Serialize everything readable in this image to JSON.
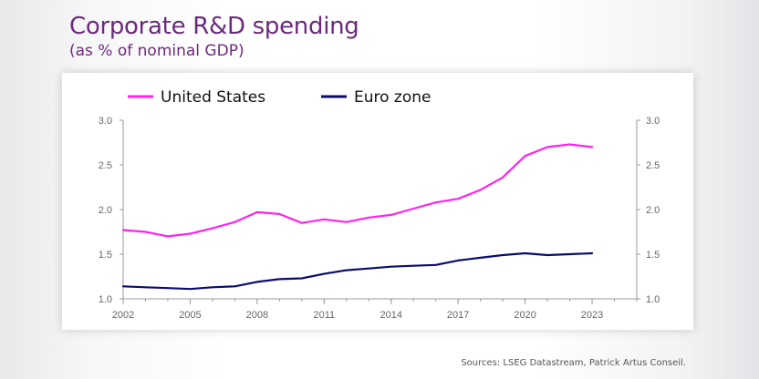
{
  "header": {
    "title": "Corporate R&D spending",
    "subtitle": "(as % of nominal GDP)"
  },
  "footer": {
    "source": "Sources: LSEG Datastream, Patrick Artus Conseil."
  },
  "chart_data": {
    "type": "line",
    "title": "Corporate R&D spending",
    "subtitle": "(as % of nominal GDP)",
    "xlabel": "",
    "ylabel": "",
    "x": [
      2002,
      2003,
      2004,
      2005,
      2006,
      2007,
      2008,
      2009,
      2010,
      2011,
      2012,
      2013,
      2014,
      2015,
      2016,
      2017,
      2018,
      2019,
      2020,
      2021,
      2022,
      2023
    ],
    "xticks": [
      "2002",
      "2005",
      "2008",
      "2011",
      "2014",
      "2017",
      "2020",
      "2023"
    ],
    "xlim": [
      2002,
      2025
    ],
    "ylim": [
      1.0,
      3.0
    ],
    "yticks": [
      "1.0",
      "1.5",
      "2.0",
      "2.5",
      "3.0"
    ],
    "legend_position": "top-left",
    "grid": false,
    "series": [
      {
        "name": "United States",
        "color": "#ff22ee",
        "values": [
          1.77,
          1.75,
          1.7,
          1.73,
          1.79,
          1.86,
          1.97,
          1.95,
          1.85,
          1.89,
          1.86,
          1.91,
          1.94,
          2.01,
          2.08,
          2.12,
          2.22,
          2.36,
          2.6,
          2.7,
          2.73,
          2.7
        ]
      },
      {
        "name": "Euro zone",
        "color": "#0b0b6e",
        "values": [
          1.14,
          1.13,
          1.12,
          1.11,
          1.13,
          1.14,
          1.19,
          1.22,
          1.23,
          1.28,
          1.32,
          1.34,
          1.36,
          1.37,
          1.38,
          1.43,
          1.46,
          1.49,
          1.51,
          1.49,
          1.5,
          1.51
        ]
      }
    ]
  }
}
